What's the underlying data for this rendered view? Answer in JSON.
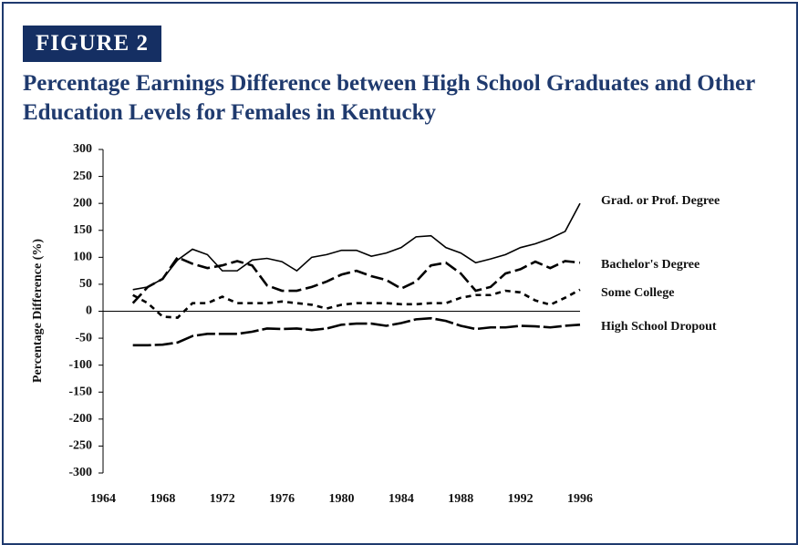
{
  "figure_label": "FIGURE 2",
  "chart_data": {
    "type": "line",
    "title": "Percentage Earnings Difference between High School Graduates and Other Education Levels for Females in Kentucky",
    "y_label": "Percentage Difference (%)",
    "x": [
      1966,
      1967,
      1968,
      1969,
      1970,
      1971,
      1972,
      1973,
      1974,
      1975,
      1976,
      1977,
      1978,
      1979,
      1980,
      1981,
      1982,
      1983,
      1984,
      1985,
      1986,
      1987,
      1988,
      1989,
      1990,
      1991,
      1992,
      1993,
      1994,
      1995,
      1996
    ],
    "xlim": [
      1964,
      1996
    ],
    "xticks": [
      1964,
      1968,
      1972,
      1976,
      1980,
      1984,
      1988,
      1992,
      1996
    ],
    "ylim": [
      -300,
      300
    ],
    "yticks": [
      -300,
      -250,
      -200,
      -150,
      -100,
      -50,
      0,
      50,
      100,
      150,
      200,
      250,
      300
    ],
    "series": [
      {
        "name": "Grad. or Prof. Degree",
        "color": "#000000",
        "dash": "solid",
        "values": [
          40,
          45,
          60,
          95,
          115,
          105,
          75,
          75,
          95,
          98,
          92,
          75,
          100,
          105,
          113,
          113,
          102,
          108,
          118,
          138,
          140,
          118,
          108,
          90,
          97,
          105,
          118,
          125,
          135,
          148,
          200
        ]
      },
      {
        "name": "Bachelor's Degree",
        "color": "#000000",
        "dash": "long",
        "values": [
          15,
          45,
          60,
          100,
          88,
          80,
          85,
          93,
          85,
          48,
          38,
          38,
          45,
          55,
          68,
          75,
          65,
          58,
          42,
          55,
          85,
          90,
          70,
          38,
          45,
          70,
          78,
          92,
          80,
          93,
          90
        ]
      },
      {
        "name": "Some College",
        "color": "#000000",
        "dash": "short",
        "values": [
          30,
          15,
          -10,
          -12,
          15,
          15,
          27,
          15,
          15,
          15,
          18,
          15,
          12,
          5,
          12,
          15,
          15,
          15,
          13,
          13,
          15,
          15,
          25,
          30,
          30,
          38,
          35,
          20,
          12,
          25,
          40
        ]
      },
      {
        "name": "High School Dropout",
        "color": "#000000",
        "dash": "longer",
        "values": [
          -63,
          -63,
          -62,
          -58,
          -46,
          -42,
          -42,
          -42,
          -38,
          -32,
          -33,
          -32,
          -35,
          -32,
          -25,
          -23,
          -23,
          -27,
          -22,
          -15,
          -13,
          -18,
          -27,
          -33,
          -30,
          -30,
          -27,
          -28,
          -30,
          -27,
          -25
        ]
      }
    ]
  }
}
